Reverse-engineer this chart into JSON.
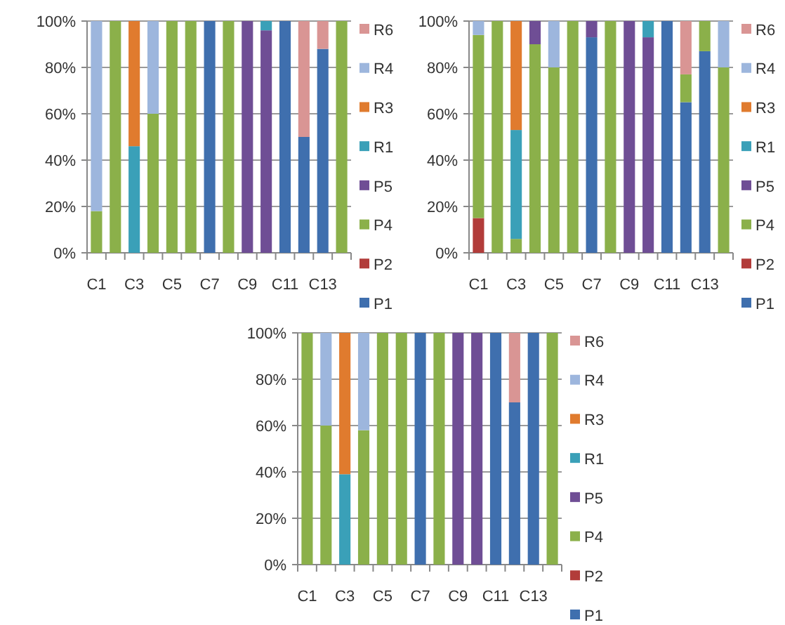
{
  "chart_data": [
    {
      "type": "bar",
      "stacked": true,
      "categories": [
        "C1",
        null,
        "C3",
        null,
        "C5",
        null,
        "C7",
        null,
        "C9",
        null,
        "C11",
        null,
        "C13",
        null
      ],
      "ylim": [
        0,
        100
      ],
      "yticks": [
        {
          "value": 0,
          "label": "0%"
        },
        {
          "value": 20,
          "label": "20%"
        },
        {
          "value": 40,
          "label": "40%"
        },
        {
          "value": 60,
          "label": "60%"
        },
        {
          "value": 80,
          "label": "80%"
        },
        {
          "value": 100,
          "label": "100%"
        }
      ],
      "grid": "y",
      "legend": "right",
      "series": [
        {
          "name": "P1",
          "color": "#3f6fae",
          "values": [
            0,
            0,
            0,
            0,
            0,
            0,
            100,
            0,
            0,
            0,
            100,
            50,
            88,
            0
          ]
        },
        {
          "name": "P2",
          "color": "#b23c3a",
          "values": [
            0,
            0,
            0,
            0,
            0,
            0,
            0,
            0,
            0,
            0,
            0,
            0,
            0,
            0
          ]
        },
        {
          "name": "P4",
          "color": "#8bb04a",
          "values": [
            18,
            100,
            0,
            60,
            100,
            100,
            0,
            100,
            0,
            0,
            0,
            0,
            0,
            100
          ]
        },
        {
          "name": "P5",
          "color": "#6f4e95",
          "values": [
            0,
            0,
            0,
            0,
            0,
            0,
            0,
            0,
            100,
            96,
            0,
            0,
            0,
            0
          ]
        },
        {
          "name": "R1",
          "color": "#3aa0b8",
          "values": [
            0,
            0,
            46,
            0,
            0,
            0,
            0,
            0,
            0,
            4,
            0,
            0,
            0,
            0
          ]
        },
        {
          "name": "R3",
          "color": "#e07b2e",
          "values": [
            0,
            0,
            54,
            0,
            0,
            0,
            0,
            0,
            0,
            0,
            0,
            0,
            0,
            0
          ]
        },
        {
          "name": "R4",
          "color": "#9db6dd",
          "values": [
            82,
            0,
            0,
            40,
            0,
            0,
            0,
            0,
            0,
            0,
            0,
            0,
            0,
            0
          ]
        },
        {
          "name": "R6",
          "color": "#d99594",
          "values": [
            0,
            0,
            0,
            0,
            0,
            0,
            0,
            0,
            0,
            0,
            0,
            50,
            12,
            0
          ]
        }
      ]
    },
    {
      "type": "bar",
      "stacked": true,
      "categories": [
        "C1",
        null,
        "C3",
        null,
        "C5",
        null,
        "C7",
        null,
        "C9",
        null,
        "C11",
        null,
        "C13",
        null
      ],
      "ylim": [
        0,
        100
      ],
      "yticks": [
        {
          "value": 0,
          "label": "0%"
        },
        {
          "value": 20,
          "label": "20%"
        },
        {
          "value": 40,
          "label": "40%"
        },
        {
          "value": 60,
          "label": "60%"
        },
        {
          "value": 80,
          "label": "80%"
        },
        {
          "value": 100,
          "label": "100%"
        }
      ],
      "grid": "y",
      "legend": "right",
      "series": [
        {
          "name": "P1",
          "color": "#3f6fae",
          "values": [
            0,
            0,
            0,
            0,
            0,
            0,
            93,
            0,
            0,
            0,
            100,
            65,
            87,
            0
          ]
        },
        {
          "name": "P2",
          "color": "#b23c3a",
          "values": [
            15,
            0,
            0,
            0,
            0,
            0,
            0,
            0,
            0,
            0,
            0,
            0,
            0,
            0
          ]
        },
        {
          "name": "P4",
          "color": "#8bb04a",
          "values": [
            79,
            100,
            6,
            90,
            80,
            100,
            0,
            100,
            0,
            0,
            0,
            12,
            13,
            80
          ]
        },
        {
          "name": "P5",
          "color": "#6f4e95",
          "values": [
            0,
            0,
            0,
            10,
            0,
            0,
            7,
            0,
            100,
            93,
            0,
            0,
            0,
            0
          ]
        },
        {
          "name": "R1",
          "color": "#3aa0b8",
          "values": [
            0,
            0,
            47,
            0,
            0,
            0,
            0,
            0,
            0,
            7,
            0,
            0,
            0,
            0
          ]
        },
        {
          "name": "R3",
          "color": "#e07b2e",
          "values": [
            0,
            0,
            47,
            0,
            0,
            0,
            0,
            0,
            0,
            0,
            0,
            0,
            0,
            0
          ]
        },
        {
          "name": "R4",
          "color": "#9db6dd",
          "values": [
            6,
            0,
            0,
            0,
            20,
            0,
            0,
            0,
            0,
            0,
            0,
            0,
            0,
            20
          ]
        },
        {
          "name": "R6",
          "color": "#d99594",
          "values": [
            0,
            0,
            0,
            0,
            0,
            0,
            0,
            0,
            0,
            0,
            0,
            23,
            0,
            0
          ]
        }
      ]
    },
    {
      "type": "bar",
      "stacked": true,
      "categories": [
        "C1",
        null,
        "C3",
        null,
        "C5",
        null,
        "C7",
        null,
        "C9",
        null,
        "C11",
        null,
        "C13",
        null
      ],
      "ylim": [
        0,
        100
      ],
      "yticks": [
        {
          "value": 0,
          "label": "0%"
        },
        {
          "value": 20,
          "label": "20%"
        },
        {
          "value": 40,
          "label": "40%"
        },
        {
          "value": 60,
          "label": "60%"
        },
        {
          "value": 80,
          "label": "80%"
        },
        {
          "value": 100,
          "label": "100%"
        }
      ],
      "grid": "y",
      "legend": "right",
      "series": [
        {
          "name": "P1",
          "color": "#3f6fae",
          "values": [
            0,
            0,
            0,
            0,
            0,
            0,
            100,
            0,
            0,
            0,
            100,
            70,
            100,
            0
          ]
        },
        {
          "name": "P2",
          "color": "#b23c3a",
          "values": [
            0,
            0,
            0,
            0,
            0,
            0,
            0,
            0,
            0,
            0,
            0,
            0,
            0,
            0
          ]
        },
        {
          "name": "P4",
          "color": "#8bb04a",
          "values": [
            100,
            60,
            0,
            58,
            100,
            100,
            0,
            100,
            0,
            0,
            0,
            0,
            0,
            100
          ]
        },
        {
          "name": "P5",
          "color": "#6f4e95",
          "values": [
            0,
            0,
            0,
            0,
            0,
            0,
            0,
            0,
            100,
            100,
            0,
            0,
            0,
            0
          ]
        },
        {
          "name": "R1",
          "color": "#3aa0b8",
          "values": [
            0,
            0,
            39,
            0,
            0,
            0,
            0,
            0,
            0,
            0,
            0,
            0,
            0,
            0
          ]
        },
        {
          "name": "R3",
          "color": "#e07b2e",
          "values": [
            0,
            0,
            61,
            0,
            0,
            0,
            0,
            0,
            0,
            0,
            0,
            0,
            0,
            0
          ]
        },
        {
          "name": "R4",
          "color": "#9db6dd",
          "values": [
            0,
            40,
            0,
            42,
            0,
            0,
            0,
            0,
            0,
            0,
            0,
            0,
            0,
            0
          ]
        },
        {
          "name": "R6",
          "color": "#d99594",
          "values": [
            0,
            0,
            0,
            0,
            0,
            0,
            0,
            0,
            0,
            0,
            0,
            30,
            0,
            0
          ]
        }
      ]
    }
  ]
}
